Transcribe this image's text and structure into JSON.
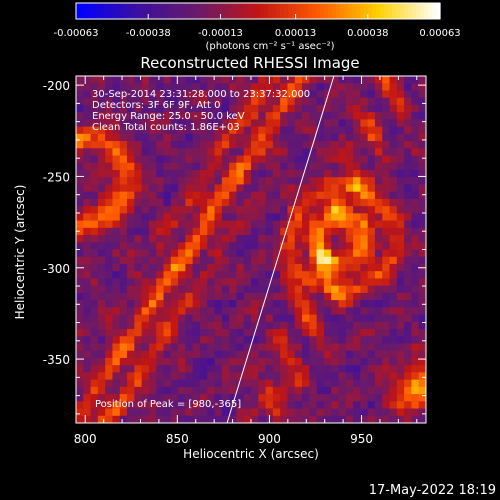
{
  "chart_data": {
    "type": "heatmap",
    "title": "Reconstructed RHESSI Image",
    "xlabel": "Heliocentric X (arcsec)",
    "ylabel": "Heliocentric Y (arcsec)",
    "xlim": [
      795,
      985
    ],
    "ylim": [
      -385,
      -195
    ],
    "xticks": [
      "800",
      "850",
      "900",
      "950"
    ],
    "xtick_values": [
      800,
      850,
      900,
      950
    ],
    "yticks": [
      "-200",
      "-250",
      "-300",
      "-350"
    ],
    "ytick_values": [
      -200,
      -250,
      -300,
      -350
    ],
    "colorbar": {
      "tick_labels": [
        "-0.00063",
        "-0.00038",
        "-0.00013",
        "0.00013",
        "0.00038",
        "0.00063"
      ],
      "tick_values": [
        -0.00063,
        -0.00038,
        -0.00013,
        0.00013,
        0.00038,
        0.00063
      ],
      "range": [
        -0.00063,
        0.00063
      ],
      "units_label": "(photons cm⁻² s⁻¹ asec⁻²)",
      "colormap_stops": [
        "#0000ff",
        "#3b0fa0",
        "#6a1a6a",
        "#c01515",
        "#ff5a00",
        "#ffd000",
        "#ffffff"
      ]
    },
    "annotations": [
      "30-Sep-2014 23:31:28.000 to 23:37:32.000",
      "Detectors: 3F 6F 9F, Att 0",
      "Energy Range: 25.0 - 50.0 keV",
      "Clean   Total counts: 1.86E+03"
    ],
    "peak_label": "Position of Peak = [980,-365]",
    "peak": [
      980,
      -365
    ],
    "limb_line": [
      [
        877,
        -385
      ],
      [
        935,
        -195
      ]
    ],
    "grid": false
  },
  "footer": {
    "timestamp": "17-May-2022 18:19"
  }
}
